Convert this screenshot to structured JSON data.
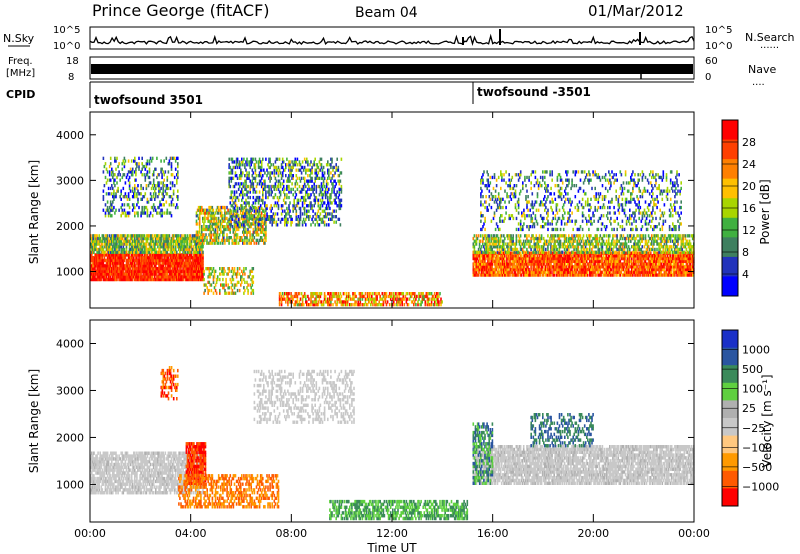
{
  "header": {
    "station": "Prince George (fitACF)",
    "beam": "Beam 04",
    "date": "01/Mar/2012"
  },
  "labels": {
    "nsky": "N.Sky",
    "nsearch": "N.Search",
    "freq_line1": "Freq.",
    "freq_line2": "[MHz]",
    "nave": "Nave",
    "cpid": "CPID",
    "dots": "......",
    "dots_short": "...."
  },
  "cpid_segments": [
    {
      "label": "twofsound 3501",
      "start_hour": 0
    },
    {
      "label": "twofsound -3501",
      "start_hour": 15.3
    }
  ],
  "colors": {
    "power": [
      "#0000ff",
      "#2233bb",
      "#3e7f5f",
      "#40b040",
      "#a8d500",
      "#ffc000",
      "#ff8000",
      "#ff4000",
      "#ff0000"
    ],
    "velocity": [
      "#ff0000",
      "#ff5a00",
      "#ff9a00",
      "#ffc880",
      "#c8c8c8",
      "#b0b0b0",
      "#5fd040",
      "#3a8a5a",
      "#2a55a0",
      "#1a30c8"
    ]
  },
  "chart_data": [
    {
      "type": "line",
      "name": "summary-nsky",
      "ylabel_left": "N.Sky",
      "ylabel_right": "N.Search",
      "ytick_labels": [
        "10^5",
        "10^0"
      ],
      "xlim": [
        0,
        24
      ]
    },
    {
      "type": "line",
      "name": "summary-frequency",
      "ylabel_left": "Freq. [MHz]",
      "ylabel_right": "Nave",
      "ytick_labels_left": [
        "18",
        "8"
      ],
      "ytick_labels_right": [
        "60",
        "0"
      ],
      "ylim_left": [
        8,
        18
      ],
      "ylim_right": [
        0,
        60
      ],
      "xlim": [
        0,
        24
      ]
    },
    {
      "type": "heatmap",
      "name": "power",
      "ylabel": "Slant Range [km]",
      "colorbar_label": "Power [dB]",
      "colorbar_ticks": [
        "28",
        "24",
        "20",
        "16",
        "12",
        "8",
        "4"
      ],
      "yticks": [
        "4000",
        "3000",
        "2000",
        "1000"
      ],
      "ylim": [
        200,
        4500
      ],
      "xlim": [
        0,
        24
      ]
    },
    {
      "type": "heatmap",
      "name": "velocity",
      "ylabel": "Slant Range [km]",
      "colorbar_label": "Velocity [m s⁻¹]",
      "colorbar_ticks": [
        "1000",
        "500",
        "100",
        "25",
        "−25",
        "−100",
        "−500",
        "−1000"
      ],
      "yticks": [
        "4000",
        "3000",
        "2000",
        "1000"
      ],
      "ylim": [
        200,
        4500
      ],
      "xlim": [
        0,
        24
      ]
    }
  ],
  "x_axis": {
    "label": "Time UT",
    "ticks": [
      "00:00",
      "04:00",
      "08:00",
      "12:00",
      "16:00",
      "20:00",
      "00:00"
    ]
  }
}
